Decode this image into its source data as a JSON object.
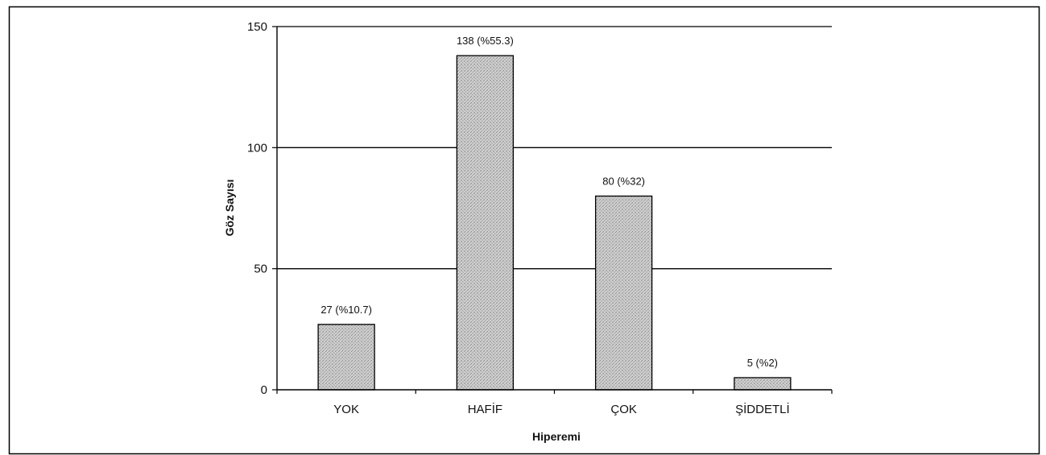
{
  "chart_data": {
    "type": "bar",
    "categories": [
      "YOK",
      "HAFİF",
      "ÇOK",
      "ŞİDDETLİ"
    ],
    "values": [
      27,
      138,
      80,
      5
    ],
    "data_labels": [
      "27 (%10.7)",
      "138 (%55.3)",
      "80 (%32)",
      "5 (%2)"
    ],
    "xlabel": "Hiperemi",
    "ylabel": "Göz Sayısı",
    "ylim": [
      0,
      150
    ],
    "yticks": [
      0,
      50,
      100,
      150
    ],
    "grid": true,
    "bar_fill": "#c8c8c8",
    "bar_stroke": "#000000",
    "grid_color": "#000000"
  }
}
